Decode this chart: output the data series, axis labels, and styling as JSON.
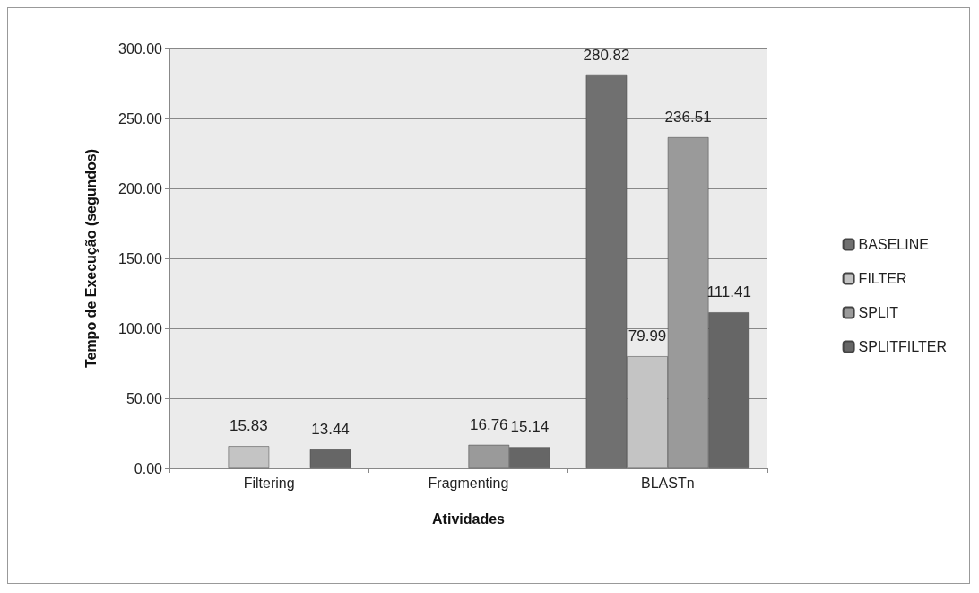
{
  "chart_data": {
    "type": "bar",
    "xlabel": "Atividades",
    "ylabel": "Tempo de Execução (segundos)",
    "categories": [
      "Filtering",
      "Fragmenting",
      "BLASTn"
    ],
    "series": [
      {
        "name": "BASELINE",
        "color": "#707070",
        "values": [
          null,
          null,
          280.82
        ]
      },
      {
        "name": "FILTER",
        "color": "#c4c4c4",
        "values": [
          15.83,
          null,
          79.99
        ]
      },
      {
        "name": "SPLIT",
        "color": "#9a9a9a",
        "values": [
          null,
          16.76,
          236.51
        ]
      },
      {
        "name": "SPLITFILTER",
        "color": "#666666",
        "values": [
          13.44,
          15.14,
          111.41
        ]
      }
    ],
    "ylim": [
      0,
      300
    ],
    "yticks": [
      {
        "value": 0,
        "label": "0.00"
      },
      {
        "value": 50,
        "label": "50.00"
      },
      {
        "value": 100,
        "label": "100.00"
      },
      {
        "value": 150,
        "label": "150.00"
      },
      {
        "value": 200,
        "label": "200.00"
      },
      {
        "value": 250,
        "label": "250.00"
      },
      {
        "value": 300,
        "label": "300.00"
      }
    ],
    "grid": "y",
    "legend": "right",
    "data_labels": true
  }
}
